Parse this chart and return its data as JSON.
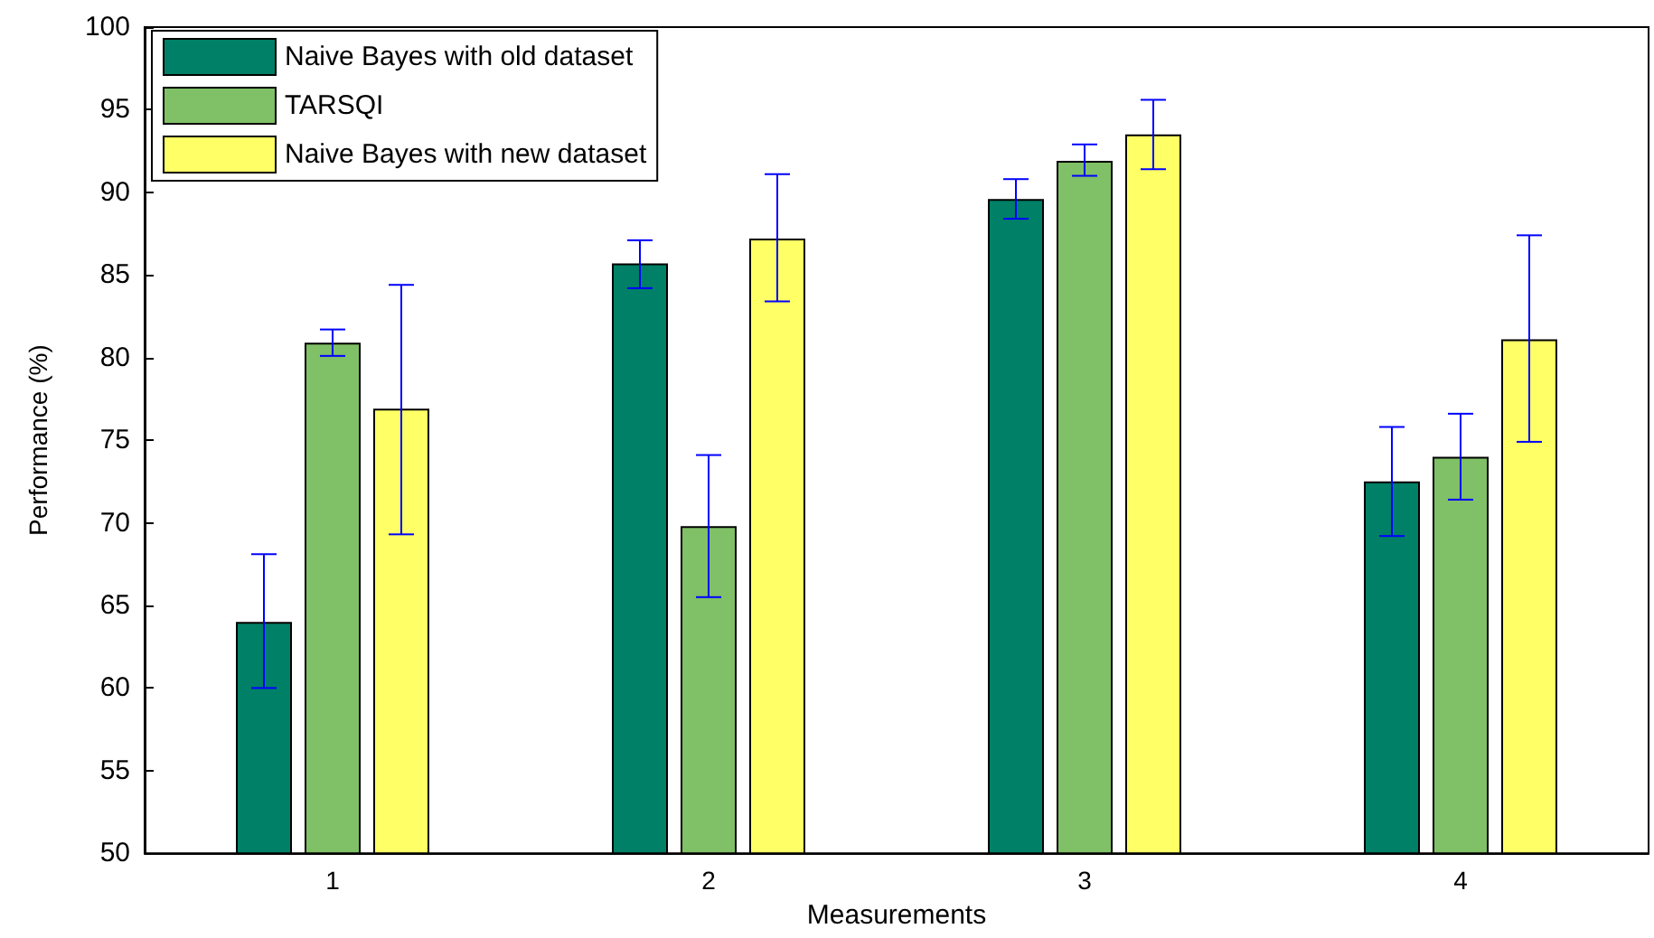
{
  "chart_data": {
    "type": "bar",
    "xlabel": "Measurements",
    "ylabel": "Performance (%)",
    "categories": [
      "1",
      "2",
      "3",
      "4"
    ],
    "series": [
      {
        "name": "Naive Bayes with old dataset",
        "color": "#008066",
        "values": [
          64.0,
          85.7,
          89.6,
          72.5
        ],
        "errors": [
          [
            60.0,
            68.1
          ],
          [
            84.2,
            87.1
          ],
          [
            88.4,
            90.8
          ],
          [
            69.2,
            75.8
          ]
        ]
      },
      {
        "name": "TARSQI",
        "color": "#80c066",
        "values": [
          80.9,
          69.8,
          91.9,
          74.0
        ],
        "errors": [
          [
            80.1,
            81.7
          ],
          [
            65.5,
            74.1
          ],
          [
            91.0,
            92.9
          ],
          [
            71.4,
            76.6
          ]
        ]
      },
      {
        "name": "Naive Bayes with new dataset",
        "color": "#ffff66",
        "values": [
          76.9,
          87.2,
          93.5,
          81.1
        ],
        "errors": [
          [
            69.3,
            84.4
          ],
          [
            83.4,
            91.1
          ],
          [
            91.4,
            95.6
          ],
          [
            74.9,
            87.4
          ]
        ]
      }
    ],
    "ylim": [
      50,
      100
    ],
    "yticks": [
      50,
      55,
      60,
      65,
      70,
      75,
      80,
      85,
      90,
      95,
      100
    ],
    "grid": false,
    "legend": "top left"
  }
}
